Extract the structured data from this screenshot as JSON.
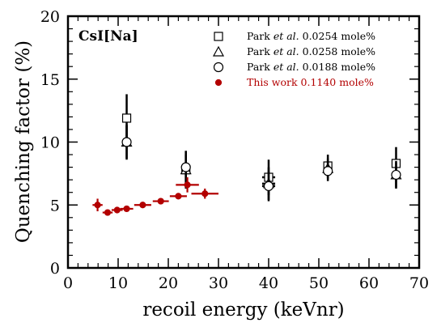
{
  "chart_data": {
    "type": "scatter",
    "title": "",
    "material_label": "CsI[Na]",
    "xlabel": "recoil energy (keVnr)",
    "ylabel": "Quenching factor (%)",
    "xlim": [
      0,
      70
    ],
    "ylim": [
      0,
      20
    ],
    "x_ticks": [
      "0",
      "10",
      "20",
      "30",
      "40",
      "50",
      "60",
      "70"
    ],
    "y_ticks": [
      "0",
      "5",
      "10",
      "15",
      "20"
    ],
    "grid": false,
    "legend_position": "top-right",
    "colors": {
      "black": "#000000",
      "red": "#b30000"
    },
    "series": [
      {
        "legend": {
          "pre": "Park ",
          "em": "et al.",
          "post": " 0.0254 mole%"
        },
        "marker": "open-square",
        "color": "#000000",
        "points": [
          {
            "x": 11.7,
            "y": 11.9,
            "xerr": 0.6,
            "yerr": 1.9
          },
          {
            "x": 23.5,
            "y": 7.8,
            "xerr": 0.8,
            "yerr": 1.5
          },
          {
            "x": 40.0,
            "y": 7.2,
            "xerr": 1.3,
            "yerr": 1.4
          },
          {
            "x": 51.8,
            "y": 8.1,
            "xerr": 0.8,
            "yerr": 0.9
          },
          {
            "x": 65.4,
            "y": 8.3,
            "xerr": 0.8,
            "yerr": 1.3
          }
        ]
      },
      {
        "legend": {
          "pre": "Park ",
          "em": "et al.",
          "post": " 0.0258 mole%"
        },
        "marker": "open-triangle",
        "color": "#000000",
        "points": [
          {
            "x": 11.7,
            "y": 10.0,
            "xerr": 0.6,
            "yerr": 1.4
          },
          {
            "x": 23.5,
            "y": 7.8,
            "xerr": 0.8,
            "yerr": 1.2
          },
          {
            "x": 40.0,
            "y": 6.7,
            "xerr": 1.3,
            "yerr": 1.3
          },
          {
            "x": 51.8,
            "y": 7.9,
            "xerr": 0.8,
            "yerr": 0.8
          },
          {
            "x": 65.4,
            "y": 7.4,
            "xerr": 0.8,
            "yerr": 1.1
          }
        ]
      },
      {
        "legend": {
          "pre": "Park ",
          "em": "et al.",
          "post": " 0.0188 mole%"
        },
        "marker": "open-circle",
        "color": "#000000",
        "points": [
          {
            "x": 11.7,
            "y": 10.0,
            "xerr": 0.6,
            "yerr": 1.3
          },
          {
            "x": 23.5,
            "y": 8.0,
            "xerr": 0.8,
            "yerr": 1.3
          },
          {
            "x": 40.0,
            "y": 6.5,
            "xerr": 1.3,
            "yerr": 1.2
          },
          {
            "x": 51.8,
            "y": 7.7,
            "xerr": 0.8,
            "yerr": 0.8
          },
          {
            "x": 65.4,
            "y": 7.4,
            "xerr": 0.8,
            "yerr": 1.0
          }
        ]
      },
      {
        "legend": {
          "pre": "This work  0.1140 mole%",
          "em": "",
          "post": ""
        },
        "marker": "filled-circle",
        "color": "#b30000",
        "points": [
          {
            "x": 5.9,
            "y": 5.0,
            "xerr": 1.0,
            "yerr": 0.5
          },
          {
            "x": 7.9,
            "y": 4.4,
            "xerr": 1.0,
            "yerr": 0.2
          },
          {
            "x": 9.8,
            "y": 4.6,
            "xerr": 1.1,
            "yerr": 0.2
          },
          {
            "x": 11.7,
            "y": 4.7,
            "xerr": 1.3,
            "yerr": 0.2
          },
          {
            "x": 14.9,
            "y": 5.0,
            "xerr": 1.7,
            "yerr": 0.2
          },
          {
            "x": 18.5,
            "y": 5.3,
            "xerr": 1.6,
            "yerr": 0.1
          },
          {
            "x": 22.0,
            "y": 5.7,
            "xerr": 1.7,
            "yerr": 0.1
          },
          {
            "x": 23.8,
            "y": 6.6,
            "xerr": 2.3,
            "yerr": 0.6
          },
          {
            "x": 27.3,
            "y": 5.9,
            "xerr": 2.7,
            "yerr": 0.4
          }
        ]
      }
    ]
  }
}
